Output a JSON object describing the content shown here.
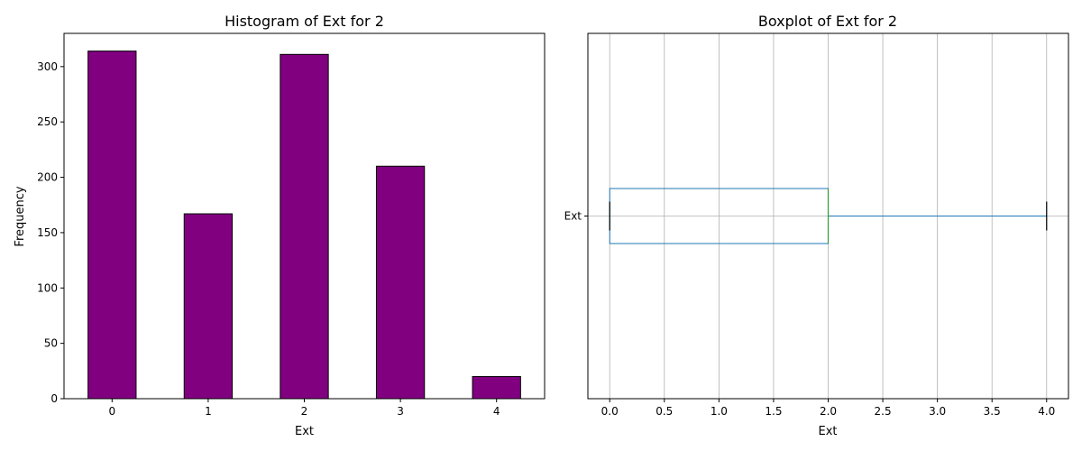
{
  "colors": {
    "bar_fill": "#800080",
    "bar_edge": "#000000",
    "box": "#1f77b4",
    "median": "#2ca02c",
    "grid": "#b0b0b0"
  },
  "chart_data": [
    {
      "type": "bar",
      "title": "Histogram of Ext for 2",
      "xlabel": "Ext",
      "ylabel": "Frequency",
      "categories": [
        "0",
        "1",
        "2",
        "3",
        "4"
      ],
      "values": [
        314,
        167,
        311,
        210,
        20
      ],
      "ylim": [
        0,
        330
      ],
      "yticks": [
        "0",
        "50",
        "100",
        "150",
        "200",
        "250",
        "300"
      ],
      "grid": false
    },
    {
      "type": "boxplot",
      "title": "Boxplot of Ext for 2",
      "xlabel": "Ext",
      "category": "Ext",
      "orientation": "horizontal",
      "stats": {
        "whisker_low": 0,
        "q1": 0,
        "median": 2,
        "q3": 2,
        "whisker_high": 4
      },
      "xlim": [
        -0.2,
        4.2
      ],
      "xticks": [
        "0.0",
        "0.5",
        "1.0",
        "1.5",
        "2.0",
        "2.5",
        "3.0",
        "3.5",
        "4.0"
      ],
      "grid": true
    }
  ]
}
